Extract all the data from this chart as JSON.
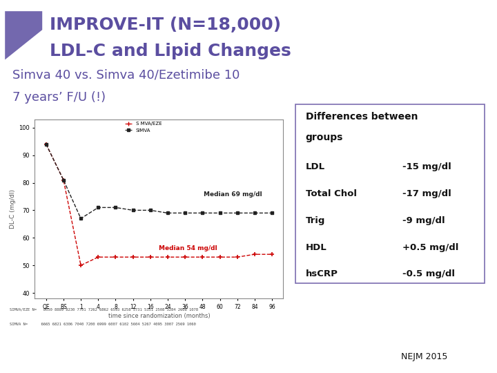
{
  "title_line1": "IMPROVE-IT (N=18,000)",
  "title_line2": "LDL-C and Lipid Changes",
  "subtitle_line1": "Simva 40 vs. Simva 40/Ezetimibe 10",
  "subtitle_line2": "7 years’ F/U (!)",
  "title_color": "#5b4ea0",
  "subtitle_color": "#5b4ea0",
  "background_color": "#ffffff",
  "x_labels": [
    "QE",
    "BS",
    "1",
    "4",
    "8",
    "12",
    "16",
    "24",
    "36",
    "48",
    "60",
    "72",
    "84",
    "96"
  ],
  "x_values": [
    0,
    1,
    2,
    3,
    4,
    5,
    6,
    7,
    8,
    9,
    10,
    11,
    12,
    13
  ],
  "simva_y": [
    94,
    81,
    67,
    71,
    71,
    70,
    70,
    69,
    69,
    69,
    69,
    69,
    69,
    69
  ],
  "simva_ezetimibe_y": [
    94,
    81,
    50,
    53,
    53,
    53,
    53,
    53,
    53,
    53,
    53,
    53,
    54,
    54
  ],
  "simva_color": "#222222",
  "simva_ezetimibe_color": "#cc0000",
  "ylabel": "DL-C (mg/dl)",
  "xlabel": "time since randomization (months)",
  "ylim": [
    38,
    103
  ],
  "yticks": [
    40,
    50,
    60,
    70,
    80,
    90,
    100
  ],
  "median_simva": "Median 69 mg/dl",
  "median_simvaezetimibe": "Median 54 mg/dl",
  "median_simva_color": "#222222",
  "median_simvaezetimibe_color": "#cc0000",
  "legend_simvaezetimibe": "S MVA/EZE",
  "legend_simva": "SIMVA",
  "diff_title_line1": "Differences between",
  "diff_title_line2": "groups",
  "diff_items": [
    [
      "LDL",
      "-15 mg/dl"
    ],
    [
      "Total Chol",
      "-17 mg/dl"
    ],
    [
      "Trig",
      "-9 mg/dl"
    ],
    [
      "HDL",
      "+0.5 mg/dl"
    ],
    [
      "hsCRP",
      "-0.5 mg/dl"
    ]
  ],
  "nejm_text": "NEJM 2015",
  "table_row1": "SIMVA/EZE N=   8550 8889 8230 7701 7262 6862 6593 6258 5731 5351 2508 3284 2608 1078",
  "table_row2": "SIMVA N=      6665 6821 6306 7040 7200 6999 6007 6102 5604 5267 4095 3007 2569 1060",
  "triangle_color_light": "#c8b8e8",
  "triangle_color_dark": "#5b4ea0"
}
